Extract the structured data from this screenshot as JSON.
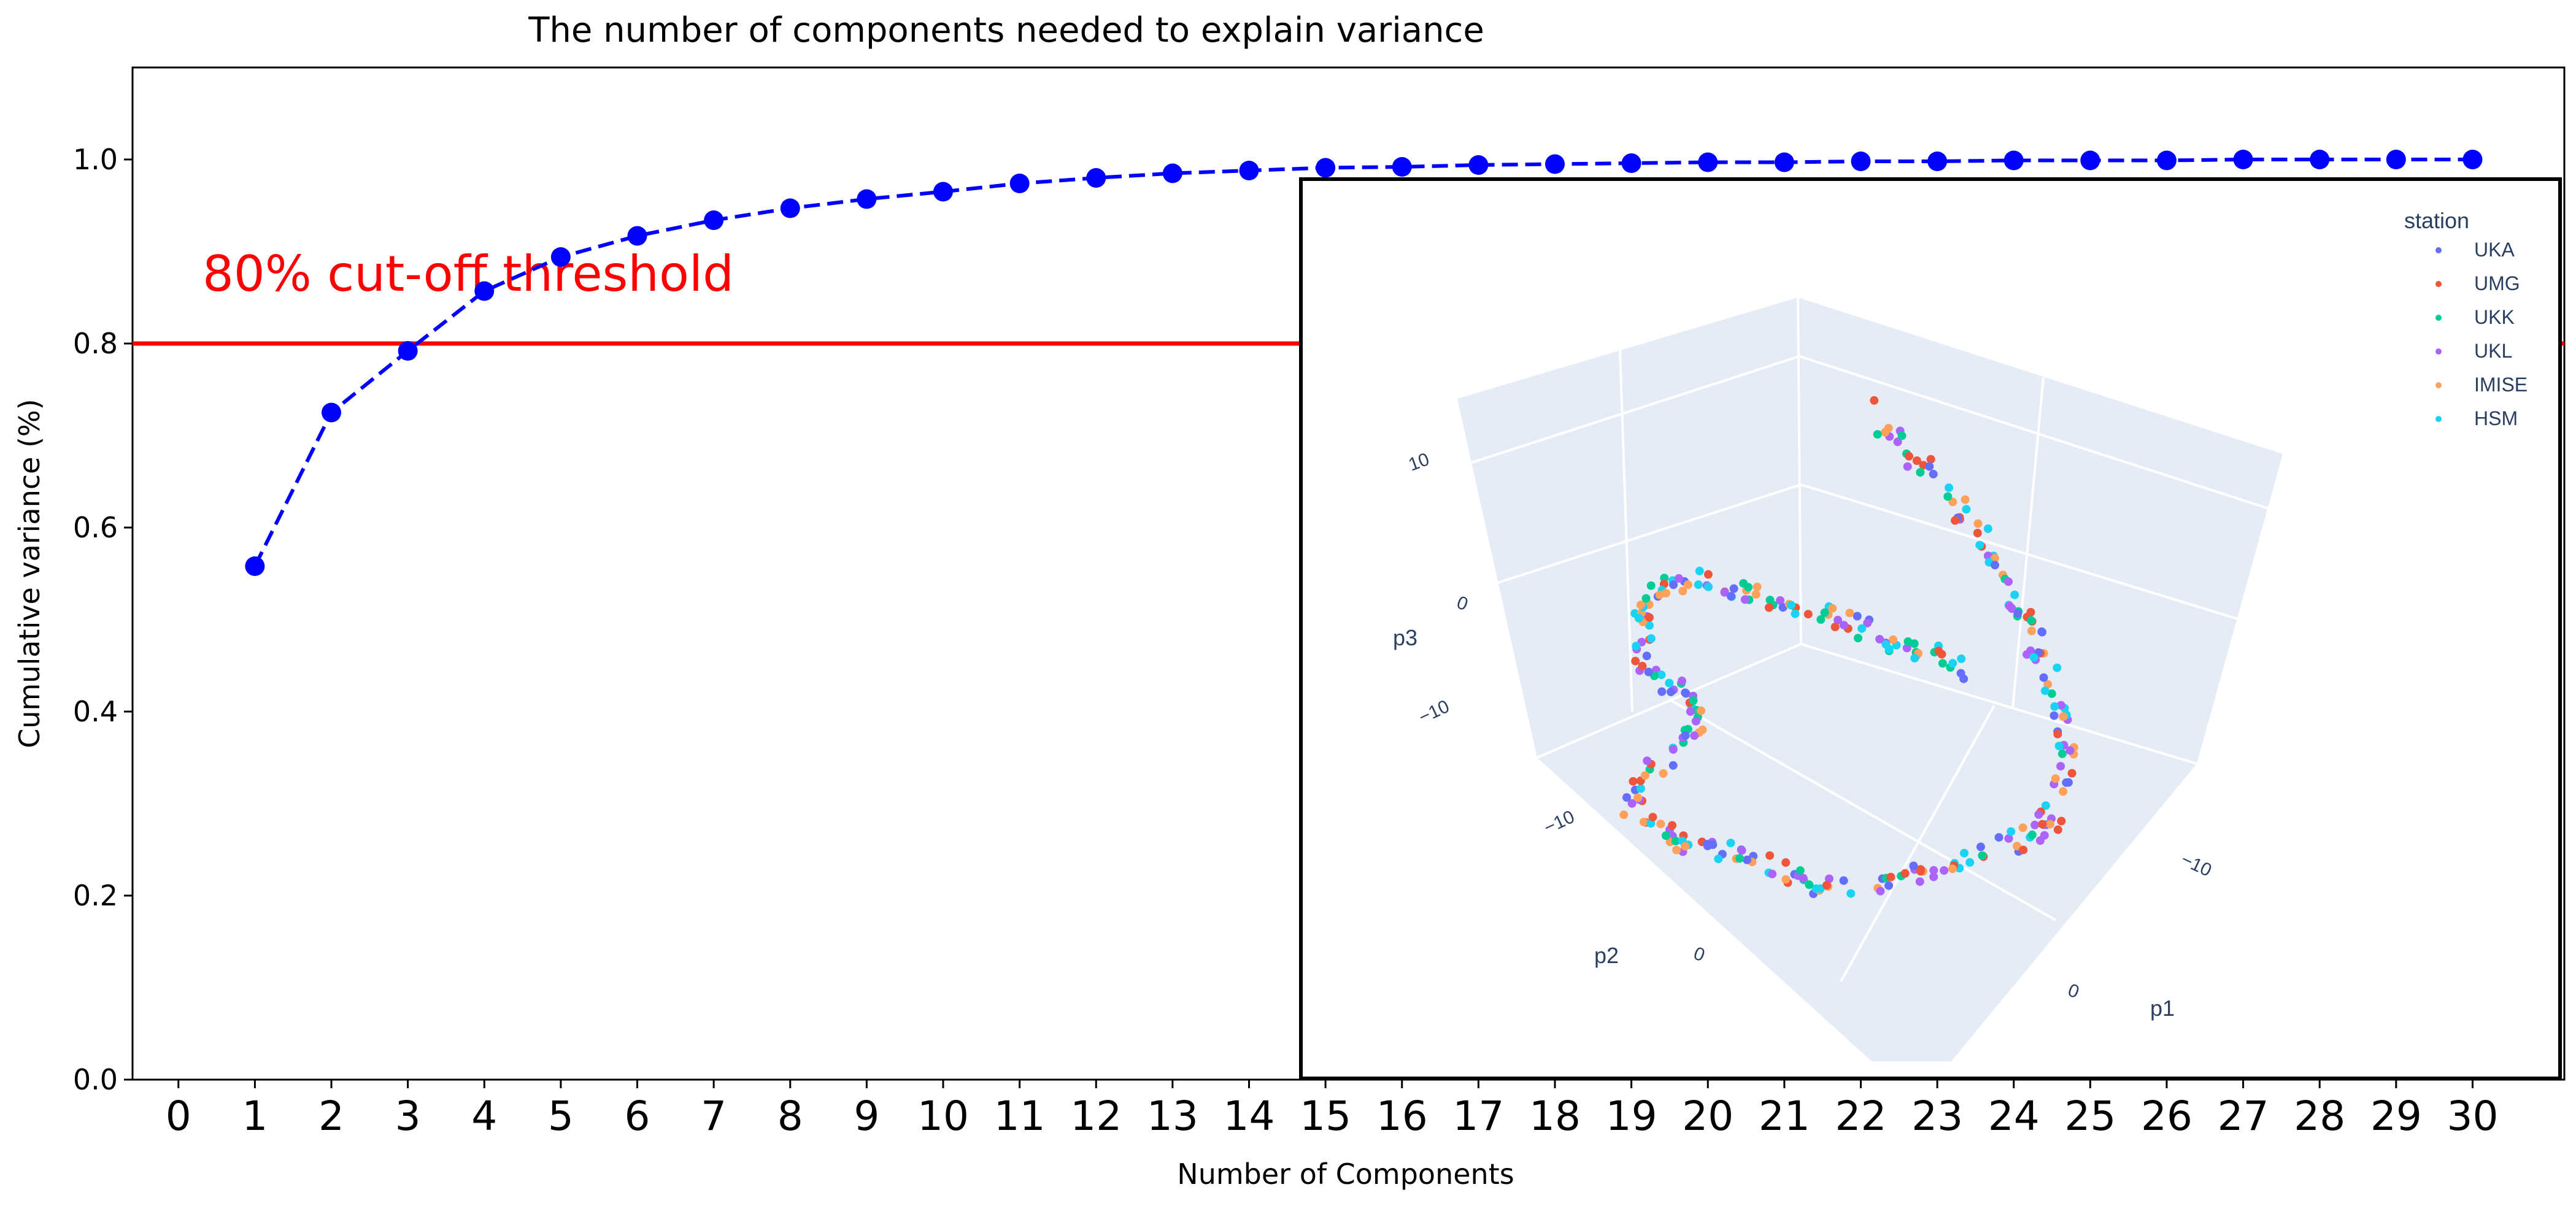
{
  "chart_data": [
    {
      "type": "line",
      "title": "The number of components needed to explain variance",
      "xlabel": "Number of Components",
      "ylabel": "Cumulative variance (%)",
      "xlim": [
        -0.6,
        31.2
      ],
      "ylim": [
        0.0,
        1.1
      ],
      "xticks": [
        "0",
        "1",
        "2",
        "3",
        "4",
        "5",
        "6",
        "7",
        "8",
        "9",
        "10",
        "11",
        "12",
        "13",
        "14",
        "15",
        "16",
        "17",
        "18",
        "19",
        "20",
        "21",
        "22",
        "23",
        "24",
        "25",
        "26",
        "27",
        "28",
        "29",
        "30"
      ],
      "yticks": [
        "0.0",
        "0.2",
        "0.4",
        "0.6",
        "0.8",
        "1.0"
      ],
      "ytick_values": [
        0.0,
        0.2,
        0.4,
        0.6,
        0.8,
        1.0
      ],
      "series": [
        {
          "name": "cumulative variance",
          "color": "#0000ff",
          "line_style": "dashed",
          "marker": "circle",
          "x": [
            1,
            2,
            3,
            4,
            5,
            6,
            7,
            8,
            9,
            10,
            11,
            12,
            13,
            14,
            15,
            16,
            17,
            18,
            19,
            20,
            21,
            22,
            23,
            24,
            25,
            26,
            27,
            28,
            29,
            30
          ],
          "y": [
            0.558,
            0.725,
            0.792,
            0.857,
            0.894,
            0.917,
            0.934,
            0.947,
            0.957,
            0.965,
            0.974,
            0.98,
            0.985,
            0.988,
            0.991,
            0.992,
            0.994,
            0.995,
            0.996,
            0.997,
            0.997,
            0.998,
            0.998,
            0.999,
            0.999,
            0.999,
            1.0,
            1.0,
            1.0,
            1.0
          ]
        }
      ],
      "threshold": {
        "value": 0.8,
        "color": "#ff0000",
        "label": "80% cut-off threshold"
      }
    },
    {
      "type": "scatter",
      "subtype": "3d",
      "axis_labels": {
        "p1": "p1",
        "p2": "p2",
        "p3": "p3"
      },
      "tick_labels": {
        "p3": [
          "10",
          "0",
          "−10"
        ],
        "p2": [
          "−10",
          "0"
        ],
        "p1": [
          "−10",
          "0"
        ]
      },
      "legend": {
        "title": "station",
        "position": "top-right",
        "entries": [
          {
            "name": "UKA",
            "color": "#636efa"
          },
          {
            "name": "UMG",
            "color": "#ef553b"
          },
          {
            "name": "UKK",
            "color": "#00cc96"
          },
          {
            "name": "UKL",
            "color": "#ab63fa"
          },
          {
            "name": "IMISE",
            "color": "#ffa15a"
          },
          {
            "name": "HSM",
            "color": "#19d3f3"
          }
        ]
      },
      "scene_background": "#e5ecf6"
    }
  ]
}
